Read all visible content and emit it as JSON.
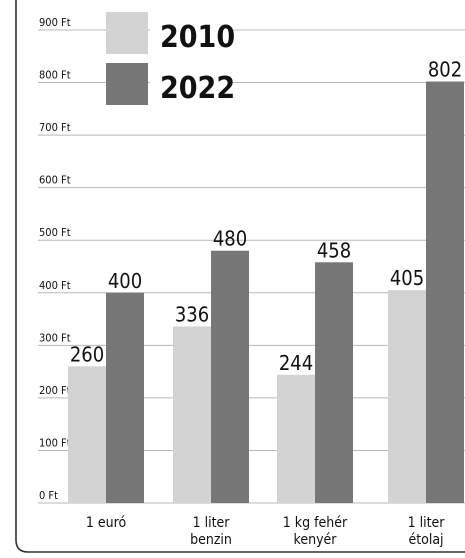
{
  "chart_data": {
    "type": "bar",
    "categories": [
      [
        "1 euró"
      ],
      [
        "1 liter",
        "benzin"
      ],
      [
        "1 kg fehér",
        "kenyér"
      ],
      [
        "1 liter",
        "étolaj"
      ]
    ],
    "series": [
      {
        "name": "2010",
        "values": [
          260,
          336,
          244,
          405
        ],
        "color": "#d3d3d3"
      },
      {
        "name": "2022",
        "values": [
          400,
          480,
          458,
          802
        ],
        "color": "#777777"
      }
    ],
    "ylim": [
      0,
      900
    ],
    "yticks": [
      "0 Ft",
      "100 Ft",
      "200 Ft",
      "300 Ft",
      "400 Ft",
      "500 Ft",
      "600 Ft",
      "700 Ft",
      "800 Ft",
      "900 Ft"
    ],
    "grid": true,
    "legend_position": "top-left"
  }
}
